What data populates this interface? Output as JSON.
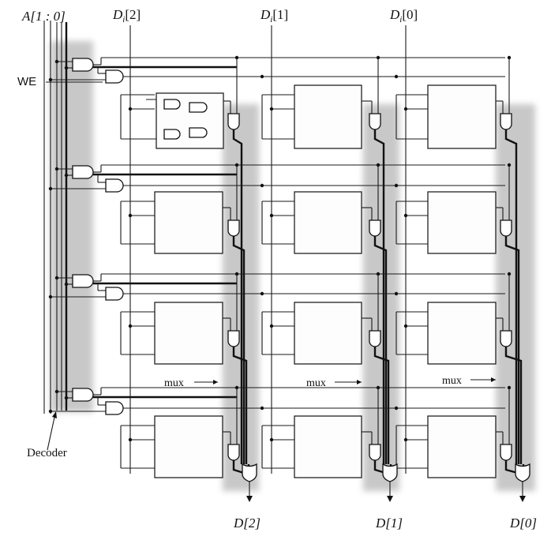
{
  "labels": {
    "address": "A[1 : 0]",
    "we": "WE",
    "decoder": "Decoder",
    "mux": "mux",
    "data_in": [
      {
        "base": "D",
        "sub": "i",
        "idx": "[2]"
      },
      {
        "base": "D",
        "sub": "i",
        "idx": "[1]"
      },
      {
        "base": "D",
        "sub": "i",
        "idx": "[0]"
      }
    ],
    "data_out": [
      "D[2]",
      "D[1]",
      "D[0]"
    ]
  },
  "grid": {
    "rows": 4,
    "columns": 3
  },
  "colors": {
    "ink": "#111111",
    "shade": "#9a9a9a",
    "paper": "#ffffff"
  }
}
